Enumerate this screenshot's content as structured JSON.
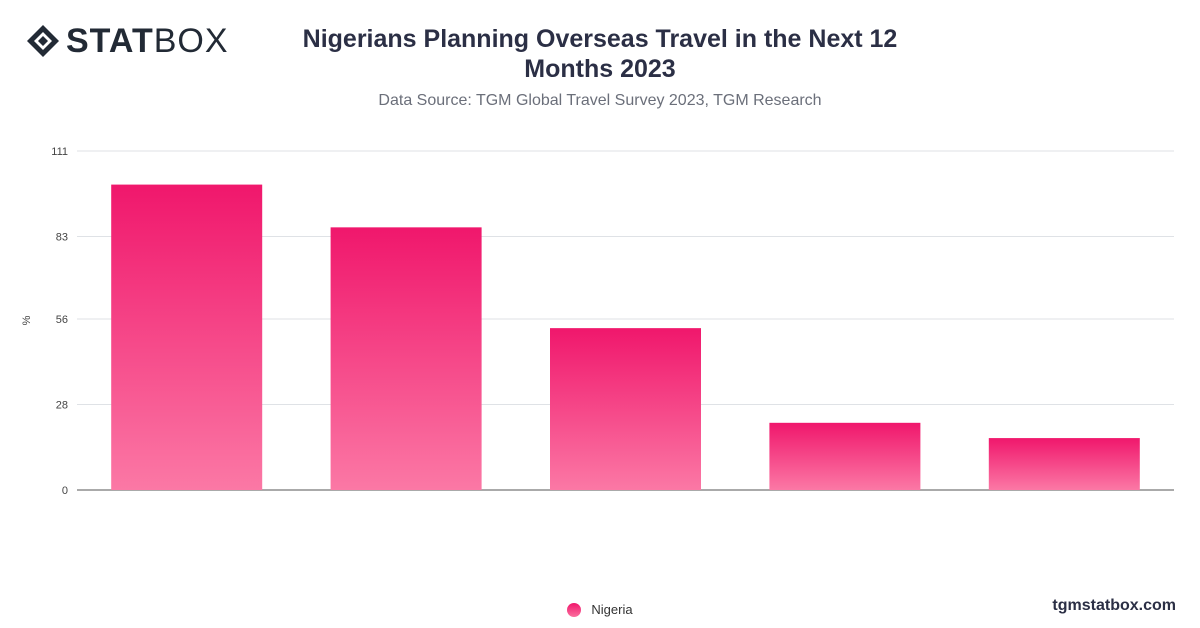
{
  "logo": {
    "text_bold": "STAT",
    "text_light": "BOX",
    "icon": "statbox-diamond-icon"
  },
  "title": "Nigerians Planning Overseas Travel in the Next 12 Months 2023",
  "subtitle": "Data Source: TGM Global Travel Survey 2023, TGM Research",
  "brand": "tgmstatbox.com",
  "colors": {
    "bar_top": "#f0176c",
    "bar_bottom": "#fb78a5",
    "title": "#2b2f45",
    "grid": "#dfe2e6"
  },
  "chart_data": {
    "type": "bar",
    "title": "Nigerians Planning Overseas Travel in the Next 12 Months 2023",
    "xlabel": "",
    "ylabel": "%",
    "ylim": [
      0,
      111
    ],
    "yticks": [
      "0",
      "28",
      "56",
      "83",
      "111"
    ],
    "categories": [
      "",
      "",
      "",
      "",
      ""
    ],
    "series": [
      {
        "name": "Nigeria",
        "values": [
          100,
          86,
          53,
          22,
          17
        ]
      }
    ],
    "grid": true,
    "legend": "bottom-center"
  }
}
